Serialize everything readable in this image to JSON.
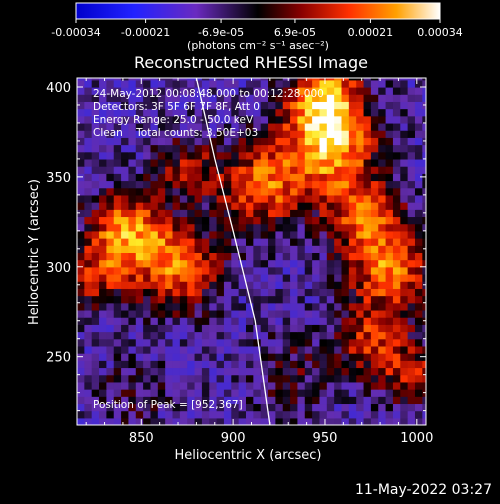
{
  "chart_data": {
    "type": "heatmap",
    "title": "Reconstructed RHESSI Image",
    "xlabel": "Heliocentric X (arcsec)",
    "ylabel": "Heliocentric Y (arcsec)",
    "xlim": [
      815,
      1005
    ],
    "ylim": [
      212,
      405
    ],
    "xticks": [
      850,
      900,
      950,
      1000
    ],
    "yticks": [
      250,
      300,
      350,
      400
    ],
    "colorbar": {
      "range": [
        -0.00034,
        0.00034
      ],
      "ticks": [
        "-0.00034",
        "-0.00021",
        "-6.9e-05",
        "6.9e-05",
        "0.00021",
        "0.00034"
      ],
      "units_label": "(photons cm⁻² s⁻¹ asec⁻²)"
    },
    "annotations": [
      "24-May-2012 00:08:48.000 to 00:12:28.000",
      "Detectors: 3F 5F 6F 7F 8F, Att 0",
      "Energy Range: 25.0 - 50.0 keV",
      "Clean    Total counts: 3.50E+03"
    ],
    "peak_label": "Position of Peak = [952,367]",
    "peak": {
      "x": 952,
      "y": 367
    },
    "limb_curve": [
      [
        880,
        405
      ],
      [
        890,
        360
      ],
      [
        900,
        320
      ],
      [
        912,
        270
      ],
      [
        920,
        212
      ]
    ],
    "sources": [
      {
        "x": 952,
        "y": 367,
        "amp": 1.0,
        "sigma": 18
      },
      {
        "x": 915,
        "y": 345,
        "amp": 0.8,
        "sigma": 16
      },
      {
        "x": 950,
        "y": 395,
        "amp": 0.9,
        "sigma": 14
      },
      {
        "x": 842,
        "y": 320,
        "amp": 0.9,
        "sigma": 15
      },
      {
        "x": 870,
        "y": 300,
        "amp": 0.85,
        "sigma": 16
      },
      {
        "x": 825,
        "y": 295,
        "amp": 0.55,
        "sigma": 12
      },
      {
        "x": 875,
        "y": 355,
        "amp": 0.5,
        "sigma": 12
      },
      {
        "x": 985,
        "y": 300,
        "amp": 0.85,
        "sigma": 16
      },
      {
        "x": 970,
        "y": 330,
        "amp": 0.7,
        "sigma": 14
      },
      {
        "x": 975,
        "y": 260,
        "amp": 0.6,
        "sigma": 14
      },
      {
        "x": 998,
        "y": 240,
        "amp": 0.55,
        "sigma": 12
      },
      {
        "x": 930,
        "y": 240,
        "amp": 0.3,
        "sigma": 16
      },
      {
        "x": 845,
        "y": 230,
        "amp": 0.25,
        "sigma": 14
      }
    ]
  },
  "footer": {
    "timestamp": "11-May-2022 03:27"
  }
}
